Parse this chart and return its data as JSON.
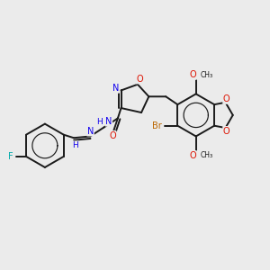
{
  "background_color": "#ebebeb",
  "bond_color": "#1a1a1a",
  "atom_colors": {
    "O": "#dd1100",
    "N": "#1100ee",
    "F": "#00aaaa",
    "Br": "#bb6600",
    "H": "#1100ee",
    "C": "#1a1a1a"
  },
  "figsize": [
    3.0,
    3.0
  ],
  "dpi": 100,
  "xlim": [
    0,
    10
  ],
  "ylim": [
    0,
    10
  ]
}
